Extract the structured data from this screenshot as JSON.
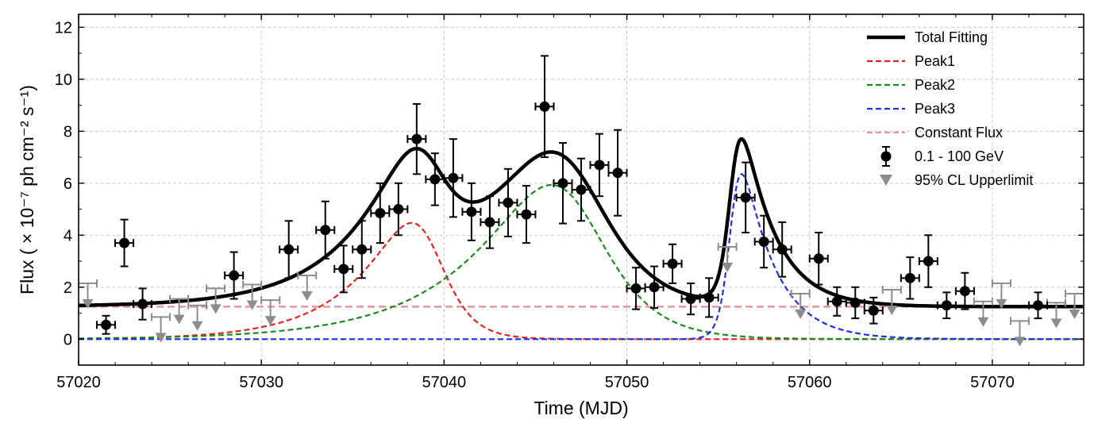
{
  "chart_data": {
    "type": "scatter",
    "xlabel": "Time (MJD)",
    "ylabel": "Flux ( × 10⁻⁷ ph cm⁻² s⁻¹)",
    "xlim": [
      57020,
      57075
    ],
    "ylim": [
      -1,
      12.5
    ],
    "xticks": [
      57020,
      57030,
      57040,
      57050,
      57060,
      57070
    ],
    "yticks": [
      0,
      2,
      4,
      6,
      8,
      10,
      12
    ],
    "grid": true,
    "legend_position": "top-right",
    "constant_flux": 1.25,
    "colors": {
      "total": "#000000",
      "peak1": "#e8221c",
      "peak2": "#1a8c1a",
      "peak3": "#1f2fe6",
      "constant": "#e8959a",
      "points": "#000000",
      "upper_limits": "#8c8c8c",
      "grid": "#c8c8c8"
    },
    "peaks": [
      {
        "name": "Peak1",
        "amp": 3.95,
        "t0": 57039.1,
        "tr": 3.2,
        "td": 1.1
      },
      {
        "name": "Peak2",
        "amp": 5.5,
        "t0": 57047.0,
        "tr": 4.5,
        "td": 2.0
      },
      {
        "name": "Peak3",
        "amp": 4.95,
        "t0": 57055.8,
        "tr": 0.35,
        "td": 1.8
      }
    ],
    "legend": [
      {
        "label": "Total Fitting",
        "key": "total",
        "style": "solid"
      },
      {
        "label": "Peak1",
        "key": "peak1",
        "style": "dash"
      },
      {
        "label": "Peak2",
        "key": "peak2",
        "style": "dash"
      },
      {
        "label": "Peak3",
        "key": "peak3",
        "style": "dash"
      },
      {
        "label": "Constant Flux",
        "key": "constant",
        "style": "dash"
      },
      {
        "label": "0.1 - 100 GeV",
        "key": "points",
        "style": "marker"
      },
      {
        "label": "95% CL Upperlimit",
        "key": "upper_limits",
        "style": "triangle"
      }
    ],
    "detections": [
      {
        "x": 57021.5,
        "y": 0.55,
        "yerr": 0.35
      },
      {
        "x": 57022.5,
        "y": 3.7,
        "yerr": 0.9
      },
      {
        "x": 57023.5,
        "y": 1.35,
        "yerr": 0.6
      },
      {
        "x": 57028.5,
        "y": 2.45,
        "yerr": 0.9
      },
      {
        "x": 57031.5,
        "y": 3.45,
        "yerr": 1.1
      },
      {
        "x": 57033.5,
        "y": 4.2,
        "yerr": 1.1
      },
      {
        "x": 57034.5,
        "y": 2.7,
        "yerr": 0.9
      },
      {
        "x": 57035.5,
        "y": 3.45,
        "yerr": 1.1
      },
      {
        "x": 57036.5,
        "y": 4.85,
        "yerr": 1.15
      },
      {
        "x": 57037.5,
        "y": 5.0,
        "yerr": 1.0
      },
      {
        "x": 57038.5,
        "y": 7.7,
        "yerr": 1.35
      },
      {
        "x": 57039.5,
        "y": 6.15,
        "yerr": 1.0
      },
      {
        "x": 57040.5,
        "y": 6.2,
        "yerr": 1.5
      },
      {
        "x": 57041.5,
        "y": 4.9,
        "yerr": 1.1
      },
      {
        "x": 57042.5,
        "y": 4.5,
        "yerr": 1.0
      },
      {
        "x": 57043.5,
        "y": 5.25,
        "yerr": 1.3
      },
      {
        "x": 57044.5,
        "y": 4.8,
        "yerr": 1.1
      },
      {
        "x": 57045.5,
        "y": 8.95,
        "yerr": 1.95
      },
      {
        "x": 57046.5,
        "y": 6.0,
        "yerr": 1.55
      },
      {
        "x": 57047.5,
        "y": 5.75,
        "yerr": 1.2
      },
      {
        "x": 57048.5,
        "y": 6.7,
        "yerr": 1.2
      },
      {
        "x": 57049.5,
        "y": 6.4,
        "yerr": 1.65
      },
      {
        "x": 57050.5,
        "y": 1.95,
        "yerr": 0.8
      },
      {
        "x": 57051.5,
        "y": 2.0,
        "yerr": 0.8
      },
      {
        "x": 57052.5,
        "y": 2.9,
        "yerr": 0.75
      },
      {
        "x": 57053.5,
        "y": 1.55,
        "yerr": 0.6
      },
      {
        "x": 57054.5,
        "y": 1.6,
        "yerr": 0.75
      },
      {
        "x": 57056.5,
        "y": 5.45,
        "yerr": 1.35
      },
      {
        "x": 57057.5,
        "y": 3.75,
        "yerr": 1.0
      },
      {
        "x": 57058.5,
        "y": 3.45,
        "yerr": 1.05
      },
      {
        "x": 57060.5,
        "y": 3.1,
        "yerr": 1.0
      },
      {
        "x": 57061.5,
        "y": 1.45,
        "yerr": 0.55
      },
      {
        "x": 57062.5,
        "y": 1.4,
        "yerr": 0.6
      },
      {
        "x": 57063.5,
        "y": 1.1,
        "yerr": 0.5
      },
      {
        "x": 57065.5,
        "y": 2.35,
        "yerr": 0.8
      },
      {
        "x": 57066.5,
        "y": 3.0,
        "yerr": 1.0
      },
      {
        "x": 57067.5,
        "y": 1.3,
        "yerr": 0.5
      },
      {
        "x": 57068.5,
        "y": 1.85,
        "yerr": 0.7
      },
      {
        "x": 57072.5,
        "y": 1.3,
        "yerr": 0.5
      }
    ],
    "upper_limits": [
      {
        "x": 57020.5,
        "y": 2.15
      },
      {
        "x": 57024.5,
        "y": 0.85
      },
      {
        "x": 57025.5,
        "y": 1.55
      },
      {
        "x": 57026.5,
        "y": 1.3
      },
      {
        "x": 57027.5,
        "y": 1.95
      },
      {
        "x": 57029.5,
        "y": 2.1
      },
      {
        "x": 57030.5,
        "y": 1.5
      },
      {
        "x": 57032.5,
        "y": 2.45
      },
      {
        "x": 57055.5,
        "y": 3.55
      },
      {
        "x": 57059.5,
        "y": 1.75
      },
      {
        "x": 57064.5,
        "y": 1.9
      },
      {
        "x": 57069.5,
        "y": 1.45
      },
      {
        "x": 57070.5,
        "y": 2.15
      },
      {
        "x": 57071.5,
        "y": 0.7
      },
      {
        "x": 57073.5,
        "y": 1.4
      },
      {
        "x": 57074.5,
        "y": 1.75
      }
    ]
  }
}
